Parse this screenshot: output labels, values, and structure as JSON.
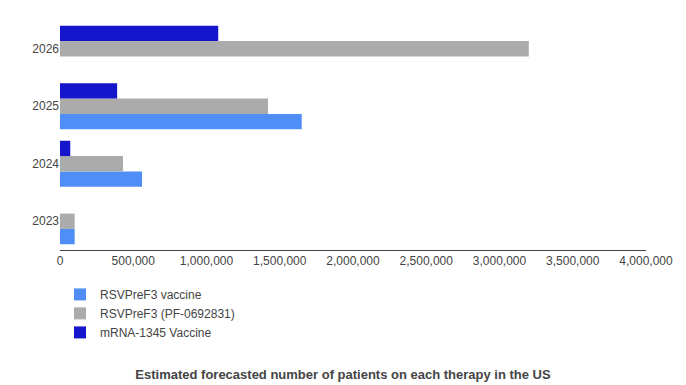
{
  "chart_data": {
    "type": "bar",
    "orientation": "horizontal",
    "title": "Estimated forecasted number of patients on each therapy in the US",
    "categories": [
      "2023",
      "2024",
      "2025",
      "2026"
    ],
    "series": [
      {
        "name": "RSVPreF3 vaccine",
        "color": "#4F8EF7",
        "values": [
          100000,
          560000,
          1650000,
          0
        ]
      },
      {
        "name": "RSVPreF3 (PF-0692831)",
        "color": "#ABABAB",
        "values": [
          100000,
          430000,
          1420000,
          3200000
        ]
      },
      {
        "name": "mRNA-1345 Vaccine",
        "color": "#1515CC",
        "values": [
          0,
          70000,
          390000,
          1080000
        ]
      }
    ],
    "xlim": [
      0,
      4000000
    ],
    "xticks": [
      0,
      {
        "value": 500000,
        "label": "500,000"
      },
      {
        "value": 1000000,
        "label": "1,000,000"
      },
      {
        "value": 1500000,
        "label": "1,500,000"
      },
      {
        "value": 2000000,
        "label": "2,000,000"
      },
      {
        "value": 2500000,
        "label": "2,500,000"
      },
      {
        "value": 3000000,
        "label": "3,000,000"
      },
      {
        "value": 3500000,
        "label": "3,500,000"
      },
      {
        "value": 4000000,
        "label": "4,000,000"
      }
    ],
    "grid": false,
    "legend": "lower left"
  }
}
